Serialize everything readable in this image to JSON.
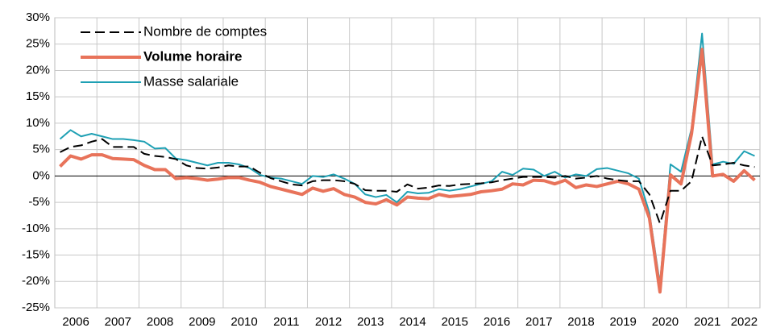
{
  "chart_data": {
    "type": "line",
    "categories": [
      "2006",
      null,
      null,
      null,
      "2007",
      null,
      null,
      null,
      "2008",
      null,
      null,
      null,
      "2009",
      null,
      null,
      null,
      "2010",
      null,
      null,
      null,
      "2011",
      null,
      null,
      null,
      "2012",
      null,
      null,
      null,
      "2013",
      null,
      null,
      null,
      "2014",
      null,
      null,
      null,
      "2015",
      null,
      null,
      null,
      "2016",
      null,
      null,
      null,
      "2017",
      null,
      null,
      null,
      "2018",
      null,
      null,
      null,
      "2019",
      null,
      null,
      null,
      "2020",
      null,
      null,
      null,
      "2021",
      null,
      null,
      null,
      "2022",
      null,
      null
    ],
    "series": [
      {
        "name": "Nombre de comptes",
        "color": "#000000",
        "dash": true,
        "width": 2,
        "values": [
          4.5,
          5.5,
          5.8,
          6.5,
          7,
          5.5,
          5.5,
          5.5,
          4.2,
          3.8,
          3.6,
          3.2,
          2,
          1.5,
          1.4,
          1.6,
          2,
          1.8,
          1.8,
          0.6,
          -0.4,
          -1,
          -1.6,
          -1.8,
          -1,
          -0.8,
          -0.8,
          -1,
          -1.5,
          -2.7,
          -2.8,
          -2.8,
          -3,
          -1.6,
          -2.4,
          -2.2,
          -1.8,
          -1.9,
          -1.6,
          -1.5,
          -1.4,
          -1.2,
          -0.8,
          -0.5,
          -0.2,
          -0.2,
          -0.2,
          -0.3,
          0,
          -0.5,
          -0.3,
          0,
          -0.5,
          -0.8,
          -1,
          -1,
          -3.5,
          -9,
          -2.8,
          -2.8,
          -1,
          7.5,
          2,
          2.2,
          2.5,
          2,
          1.7
        ]
      },
      {
        "name": "Volume horaire",
        "color": "#e8735a",
        "dash": false,
        "width": 4,
        "values": [
          1.8,
          3.8,
          3.2,
          4,
          4,
          3.3,
          3.2,
          3.1,
          2,
          1.2,
          1.2,
          -0.5,
          -0.3,
          -0.5,
          -0.8,
          -0.6,
          -0.3,
          -0.3,
          -0.8,
          -1.2,
          -2,
          -2.5,
          -3,
          -3.5,
          -2.3,
          -2.9,
          -2.4,
          -3.5,
          -4,
          -5,
          -5.3,
          -4.5,
          -5.5,
          -4,
          -4.2,
          -4.3,
          -3.5,
          -3.9,
          -3.7,
          -3.5,
          -3,
          -2.8,
          -2.5,
          -1.5,
          -1.7,
          -0.8,
          -0.9,
          -1.5,
          -0.8,
          -2.2,
          -1.7,
          -2,
          -1.5,
          -1,
          -1.5,
          -2.5,
          -8,
          -22,
          0.2,
          -1.5,
          8,
          24,
          0,
          0.3,
          -1,
          1,
          -0.8
        ]
      },
      {
        "name": "Masse salariale",
        "color": "#1ea0b4",
        "dash": false,
        "width": 2,
        "values": [
          7,
          8.7,
          7.5,
          8,
          7.5,
          7,
          7,
          6.8,
          6.5,
          5.2,
          5.3,
          3.3,
          3,
          2.5,
          2,
          2.5,
          2.5,
          2.2,
          1.5,
          0.2,
          -0.3,
          -0.5,
          -1,
          -1.5,
          0,
          -0.2,
          0.3,
          -0.5,
          -1.5,
          -3.5,
          -4,
          -3.6,
          -5,
          -3,
          -3.3,
          -3.2,
          -2.5,
          -2.8,
          -2.5,
          -2,
          -1.5,
          -1,
          0.8,
          0.2,
          1.4,
          1.2,
          0,
          0.8,
          -0.3,
          0.3,
          0,
          1.3,
          1.5,
          1,
          0.5,
          -0.5,
          -7,
          -20.5,
          2.2,
          0.8,
          9,
          27,
          2.2,
          2.7,
          2.3,
          4.7,
          3.8
        ]
      }
    ],
    "ylim": [
      -25,
      30
    ],
    "yticks": [
      {
        "value": -25,
        "label": "-25%"
      },
      {
        "value": -20,
        "label": "-20%"
      },
      {
        "value": -15,
        "label": "-15%"
      },
      {
        "value": -10,
        "label": "-10%"
      },
      {
        "value": -5,
        "label": "-5%"
      },
      {
        "value": 0,
        "label": "0%"
      },
      {
        "value": 5,
        "label": "5%"
      },
      {
        "value": 10,
        "label": "10%"
      },
      {
        "value": 15,
        "label": "15%"
      },
      {
        "value": 20,
        "label": "20%"
      },
      {
        "value": 25,
        "label": "25%"
      },
      {
        "value": 30,
        "label": "30%"
      }
    ],
    "grid": true,
    "legend": "top-left"
  }
}
